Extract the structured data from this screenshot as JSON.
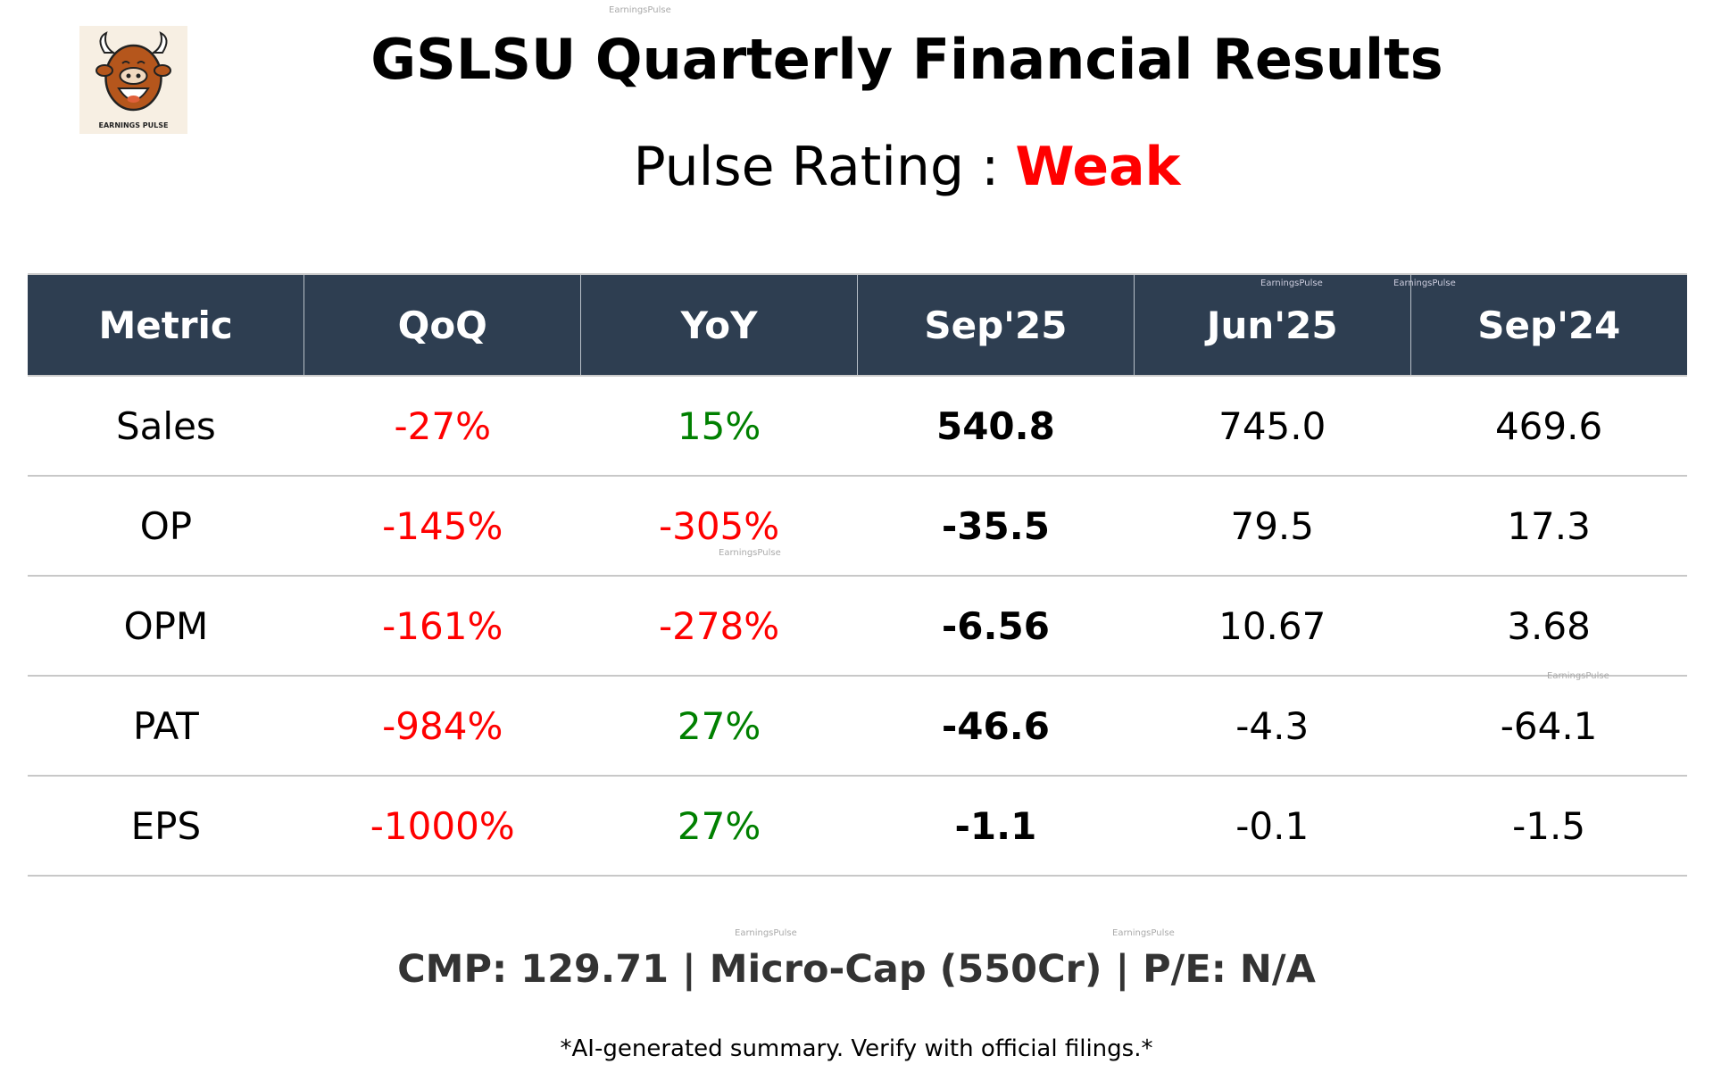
{
  "logo_text": "EARNINGS PULSE",
  "watermark": "EarningsPulse",
  "title": "GSLSU Quarterly Financial Results",
  "rating": {
    "label": "Pulse Rating :",
    "value": "Weak",
    "color": "#ff0000"
  },
  "table": {
    "headers": [
      "Metric",
      "QoQ",
      "YoY",
      "Sep'25",
      "Jun'25",
      "Sep'24"
    ],
    "rows": [
      {
        "metric": "Sales",
        "qoq": "-27%",
        "yoy": "15%",
        "sep25": "540.8",
        "jun25": "745.0",
        "sep24": "469.6",
        "qoq_class": "neg",
        "yoy_class": "pos"
      },
      {
        "metric": "OP",
        "qoq": "-145%",
        "yoy": "-305%",
        "sep25": "-35.5",
        "jun25": "79.5",
        "sep24": "17.3",
        "qoq_class": "neg",
        "yoy_class": "neg"
      },
      {
        "metric": "OPM",
        "qoq": "-161%",
        "yoy": "-278%",
        "sep25": "-6.56",
        "jun25": "10.67",
        "sep24": "3.68",
        "qoq_class": "neg",
        "yoy_class": "neg"
      },
      {
        "metric": "PAT",
        "qoq": "-984%",
        "yoy": "27%",
        "sep25": "-46.6",
        "jun25": "-4.3",
        "sep24": "-64.1",
        "qoq_class": "neg",
        "yoy_class": "pos"
      },
      {
        "metric": "EPS",
        "qoq": "-1000%",
        "yoy": "27%",
        "sep25": "-1.1",
        "jun25": "-0.1",
        "sep24": "-1.5",
        "qoq_class": "neg",
        "yoy_class": "pos"
      }
    ]
  },
  "footer": {
    "cmp_line": "CMP: 129.71 | Micro-Cap (550Cr) | P/E: N/A",
    "disclaimer": "*AI-generated summary. Verify with official filings.*"
  },
  "colors": {
    "header_bg": "#2e3e51",
    "negative": "#ff0000",
    "positive": "#008000"
  }
}
